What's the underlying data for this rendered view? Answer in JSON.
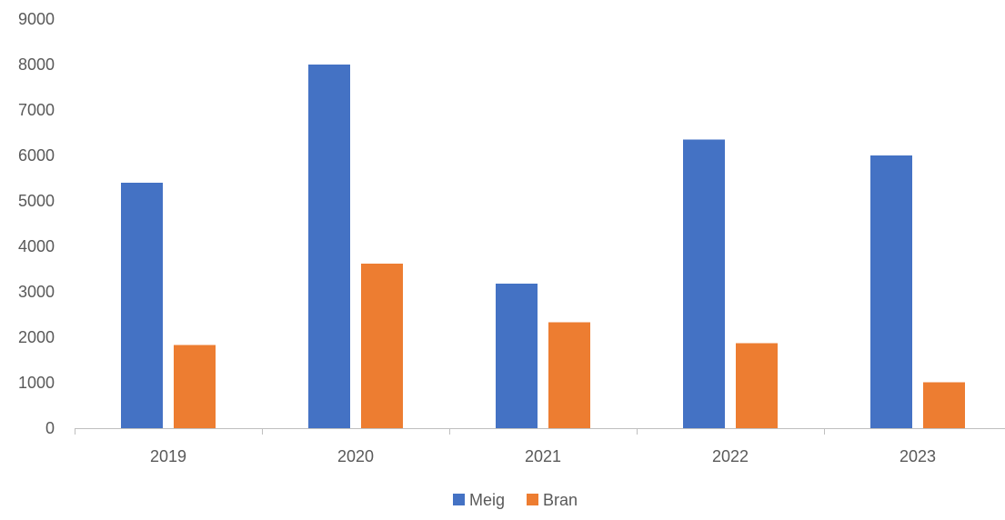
{
  "chart_data": {
    "type": "bar",
    "title": "",
    "xlabel": "",
    "ylabel": "",
    "categories": [
      "2019",
      "2020",
      "2021",
      "2022",
      "2023"
    ],
    "series": [
      {
        "name": "Meig",
        "color": "#4472C4",
        "values": [
          5400,
          8000,
          3180,
          6350,
          6000
        ]
      },
      {
        "name": "Bran",
        "color": "#ED7D31",
        "values": [
          1830,
          3620,
          2330,
          1870,
          1010
        ]
      }
    ],
    "ylim": [
      0,
      9000
    ],
    "yticks": [
      0,
      1000,
      2000,
      3000,
      4000,
      5000,
      6000,
      7000,
      8000,
      9000
    ],
    "grid": false,
    "legend_position": "bottom"
  }
}
